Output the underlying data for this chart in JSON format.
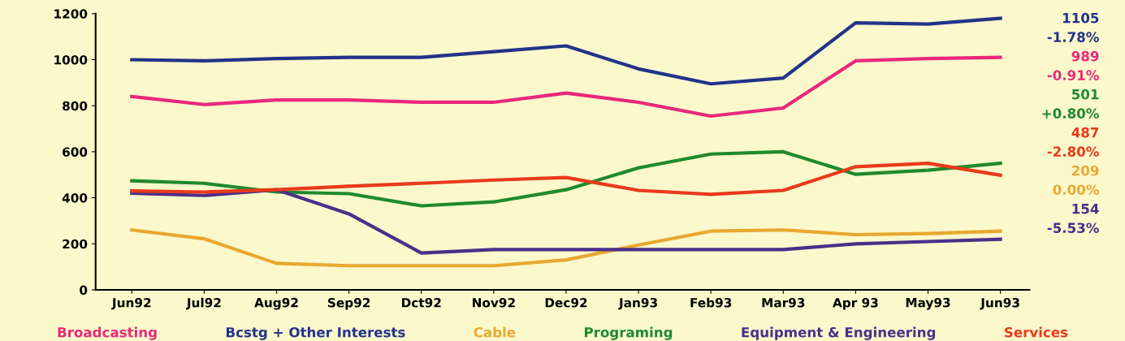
{
  "chart_data": {
    "type": "line",
    "categories": [
      "Jun92",
      "Jul92",
      "Aug92",
      "Sep92",
      "Dct92",
      "Nov92",
      "Dec92",
      "Jan93",
      "Feb93",
      "Mar93",
      "Apr 93",
      "May93",
      "Jun93"
    ],
    "series": [
      {
        "name": "Broadcasting",
        "color": "#e8287a",
        "values": [
          840,
          805,
          825,
          825,
          815,
          815,
          855,
          815,
          755,
          790,
          995,
          1005,
          1010
        ]
      },
      {
        "name": "Bcstg + Other Interests",
        "color": "#22338a",
        "values": [
          1000,
          995,
          1005,
          1010,
          1010,
          1035,
          1060,
          960,
          895,
          920,
          1160,
          1155,
          1180
        ]
      },
      {
        "name": "Cable",
        "color": "#e8a830",
        "values": [
          260,
          222,
          115,
          105,
          105,
          105,
          130,
          195,
          255,
          260,
          240,
          245,
          255
        ]
      },
      {
        "name": "Programing",
        "color": "#1e8a2e",
        "values": [
          474,
          463,
          425,
          418,
          365,
          382,
          435,
          530,
          590,
          600,
          502,
          520,
          550
        ]
      },
      {
        "name": "Equipment & Engineering",
        "color": "#4a2f8a",
        "values": [
          420,
          410,
          435,
          330,
          160,
          175,
          175,
          175,
          175,
          175,
          200,
          210,
          220
        ]
      },
      {
        "name": "Services",
        "color": "#e83a1a",
        "values": [
          430,
          425,
          435,
          450,
          463,
          477,
          488,
          432,
          415,
          432,
          535,
          550,
          498
        ]
      }
    ],
    "ylim": [
      0,
      1200
    ],
    "yticks": [
      0,
      200,
      400,
      600,
      800,
      1000,
      1200
    ],
    "annotations": [
      "1105",
      "-1.78%",
      "989",
      "-0.91%",
      "501",
      "+0.80%",
      "487",
      "-2.80%",
      "209",
      "0.00%",
      "154",
      "-5.53%"
    ],
    "legend": "bottom",
    "grid": false,
    "marker": "none",
    "line_style": "solid"
  }
}
